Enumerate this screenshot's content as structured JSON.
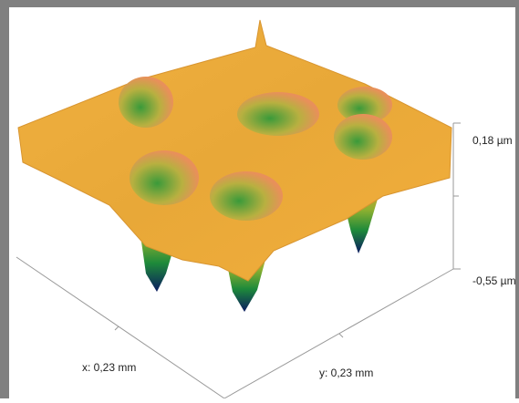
{
  "labels": {
    "z_max": "0,18 µm",
    "z_min": "-0,55 µm",
    "x_axis": "x: 0,23 mm",
    "y_axis": "y: 0,23 mm"
  }
}
